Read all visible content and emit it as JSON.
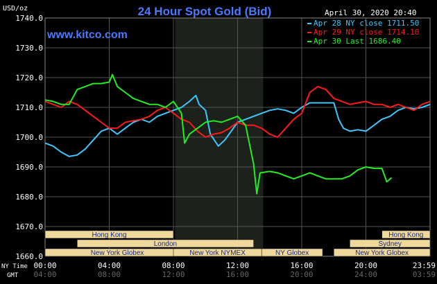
{
  "header": {
    "title": "24 Hour Spot Gold (Bid)",
    "unit": "USD/oz",
    "website": "www.kitco.com",
    "timestamp": "April 30, 2020 20:40"
  },
  "legend": [
    {
      "text": "Apr 28 NY close 1711.50",
      "color": "#3fc8ff"
    },
    {
      "text": "Apr 29 NY close 1714.10",
      "color": "#ff1a1a"
    },
    {
      "text": "Apr 30 Last 1686.40",
      "color": "#22ee22"
    }
  ],
  "axis_labels": {
    "ny_time": "NY Time",
    "gmt": "GMT"
  },
  "sessions": [
    {
      "label": "Hong Kong",
      "start": -0.1,
      "end": 8
    },
    {
      "label": "London",
      "start": 2,
      "end": 13
    },
    {
      "label": "New York Globex",
      "start": -0.1,
      "end": 9
    },
    {
      "label": "New York NYMEX",
      "start": 8,
      "end": 13.5
    },
    {
      "label": "NY Globex",
      "start": 13.5,
      "end": 17.3
    },
    {
      "label": "Hong Kong",
      "start": 21,
      "end": 24
    },
    {
      "label": "Sydney",
      "start": 19,
      "end": 24
    },
    {
      "label": "New York Globex",
      "start": 18,
      "end": 24
    }
  ],
  "colors": {
    "background": "#000000",
    "grid": "#555555",
    "shade": "#1c211c",
    "session_fill": "#eed89c",
    "session_text": "#1a2a7a",
    "axis_text": "#ffffff",
    "title": "#4a7aff",
    "website": "#4a7aff"
  },
  "chart_data": {
    "type": "line",
    "title": "24 Hour Spot Gold (Bid)",
    "ylabel": "USD/oz",
    "ylim": [
      1660,
      1740
    ],
    "xlim": [
      0,
      24
    ],
    "x_unit": "hours NY time",
    "yticks": [
      "1660.0",
      "1670.0",
      "1680.0",
      "1690.0",
      "1700.0",
      "1710.0",
      "1720.0",
      "1730.0",
      "1740.0"
    ],
    "xticks": [
      "00:00",
      "04:00",
      "08:00",
      "12:00",
      "16:00",
      "20:00",
      "23:59"
    ],
    "gmt_ticks": [
      "04:00",
      "08:00",
      "12:00",
      "16:00",
      "20:00",
      "24:00",
      "03:59"
    ],
    "shaded_region": [
      8.1,
      13.6
    ],
    "grid": true,
    "legend_position": "top-right",
    "series": [
      {
        "name": "Apr 28 NY close 1711.50",
        "color": "#3fc8ff",
        "points": [
          [
            0,
            1698
          ],
          [
            0.5,
            1697
          ],
          [
            1,
            1695
          ],
          [
            1.5,
            1693.5
          ],
          [
            2,
            1694
          ],
          [
            2.5,
            1696
          ],
          [
            3,
            1699
          ],
          [
            3.5,
            1702
          ],
          [
            4,
            1703
          ],
          [
            4.5,
            1701
          ],
          [
            5,
            1703
          ],
          [
            5.5,
            1705
          ],
          [
            6,
            1706
          ],
          [
            6.5,
            1705
          ],
          [
            7,
            1707
          ],
          [
            7.5,
            1708
          ],
          [
            8,
            1709
          ],
          [
            8.5,
            1710
          ],
          [
            9,
            1712
          ],
          [
            9.4,
            1714
          ],
          [
            9.6,
            1711
          ],
          [
            10,
            1709
          ],
          [
            10.3,
            1701
          ],
          [
            10.8,
            1697
          ],
          [
            11.2,
            1699
          ],
          [
            11.6,
            1702
          ],
          [
            12,
            1705
          ],
          [
            12.5,
            1706
          ],
          [
            13,
            1707
          ],
          [
            13.5,
            1708
          ],
          [
            14,
            1709
          ],
          [
            14.5,
            1709.5
          ],
          [
            15,
            1709
          ],
          [
            15.5,
            1708
          ],
          [
            16,
            1710
          ],
          [
            16.5,
            1711.5
          ],
          [
            17,
            1711.5
          ],
          [
            17.5,
            1711.5
          ],
          [
            18,
            1711.5
          ],
          [
            18.3,
            1706
          ],
          [
            18.6,
            1703
          ],
          [
            19,
            1702
          ],
          [
            19.5,
            1702.5
          ],
          [
            20,
            1702
          ],
          [
            20.5,
            1704
          ],
          [
            21,
            1706
          ],
          [
            21.5,
            1707
          ],
          [
            22,
            1709
          ],
          [
            22.5,
            1710
          ],
          [
            23,
            1709.5
          ],
          [
            23.5,
            1710
          ],
          [
            24,
            1711
          ]
        ]
      },
      {
        "name": "Apr 29 NY close 1714.10",
        "color": "#ff1a1a",
        "points": [
          [
            0,
            1712
          ],
          [
            0.5,
            1711
          ],
          [
            1,
            1710
          ],
          [
            1.5,
            1712
          ],
          [
            2,
            1711
          ],
          [
            2.5,
            1709
          ],
          [
            3,
            1707
          ],
          [
            3.5,
            1705
          ],
          [
            4,
            1703
          ],
          [
            4.5,
            1703
          ],
          [
            5,
            1705
          ],
          [
            5.5,
            1705.5
          ],
          [
            6,
            1706
          ],
          [
            6.5,
            1707
          ],
          [
            7,
            1709
          ],
          [
            7.5,
            1710
          ],
          [
            8,
            1708
          ],
          [
            8.5,
            1706
          ],
          [
            9,
            1705
          ],
          [
            9.5,
            1702
          ],
          [
            10,
            1700
          ],
          [
            10.5,
            1701
          ],
          [
            11,
            1701.5
          ],
          [
            11.5,
            1703
          ],
          [
            12,
            1705
          ],
          [
            12.5,
            1704
          ],
          [
            13,
            1704
          ],
          [
            13.5,
            1703
          ],
          [
            14,
            1701
          ],
          [
            14.5,
            1700
          ],
          [
            15,
            1703
          ],
          [
            15.5,
            1706
          ],
          [
            16,
            1708
          ],
          [
            16.5,
            1715
          ],
          [
            17,
            1717
          ],
          [
            17.5,
            1716
          ],
          [
            18,
            1713
          ],
          [
            18.5,
            1712
          ],
          [
            19,
            1711
          ],
          [
            19.5,
            1711.5
          ],
          [
            20,
            1712
          ],
          [
            20.5,
            1711
          ],
          [
            21,
            1711
          ],
          [
            21.5,
            1710
          ],
          [
            22,
            1711
          ],
          [
            22.5,
            1710
          ],
          [
            23,
            1709
          ],
          [
            23.5,
            1711
          ],
          [
            24,
            1712
          ]
        ]
      },
      {
        "name": "Apr 30 Last 1686.40",
        "color": "#22ee22",
        "points": [
          [
            0,
            1712.5
          ],
          [
            0.5,
            1712
          ],
          [
            1,
            1711
          ],
          [
            1.5,
            1711
          ],
          [
            2,
            1716
          ],
          [
            2.5,
            1717
          ],
          [
            3,
            1718
          ],
          [
            3.5,
            1718
          ],
          [
            4,
            1718.5
          ],
          [
            4.2,
            1721
          ],
          [
            4.5,
            1717
          ],
          [
            5,
            1715
          ],
          [
            5.5,
            1713
          ],
          [
            6,
            1712
          ],
          [
            6.5,
            1711
          ],
          [
            7,
            1711
          ],
          [
            7.5,
            1710
          ],
          [
            8,
            1712
          ],
          [
            8.5,
            1708
          ],
          [
            8.7,
            1698
          ],
          [
            9,
            1701
          ],
          [
            9.5,
            1703
          ],
          [
            10,
            1705
          ],
          [
            10.5,
            1705.5
          ],
          [
            11,
            1705
          ],
          [
            11.5,
            1706
          ],
          [
            12,
            1707
          ],
          [
            12.5,
            1704
          ],
          [
            13,
            1691
          ],
          [
            13.2,
            1681
          ],
          [
            13.4,
            1688
          ],
          [
            14,
            1688.5
          ],
          [
            14.5,
            1688
          ],
          [
            15,
            1687
          ],
          [
            15.5,
            1686
          ],
          [
            16,
            1687
          ],
          [
            16.5,
            1688
          ],
          [
            17,
            1687
          ],
          [
            17.5,
            1686
          ],
          [
            18,
            1686
          ],
          [
            18.5,
            1686
          ],
          [
            19,
            1687
          ],
          [
            19.5,
            1689
          ],
          [
            20,
            1690
          ],
          [
            20.5,
            1689.5
          ],
          [
            21,
            1689.5
          ],
          [
            21.3,
            1685
          ],
          [
            21.6,
            1686.4
          ]
        ]
      }
    ]
  }
}
